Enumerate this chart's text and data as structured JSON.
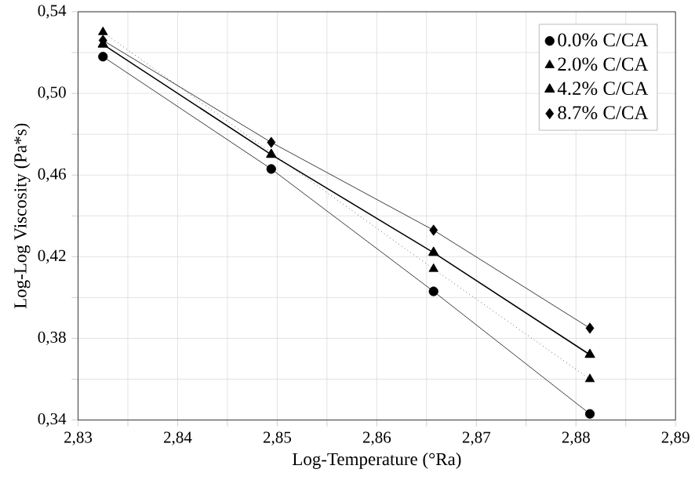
{
  "chart_data": {
    "type": "line",
    "xlabel": "Log-Temperature (°Ra)",
    "ylabel": "Log-Log Viscosity (Pa*s)",
    "xlim": [
      2.83,
      2.89
    ],
    "ylim": [
      0.34,
      0.54
    ],
    "xticks": [
      {
        "value": 2.83,
        "label": "2,83"
      },
      {
        "value": 2.835,
        "label": null
      },
      {
        "value": 2.84,
        "label": "2,84"
      },
      {
        "value": 2.845,
        "label": null
      },
      {
        "value": 2.85,
        "label": "2,85"
      },
      {
        "value": 2.855,
        "label": null
      },
      {
        "value": 2.86,
        "label": "2,86"
      },
      {
        "value": 2.865,
        "label": null
      },
      {
        "value": 2.87,
        "label": "2,87"
      },
      {
        "value": 2.875,
        "label": null
      },
      {
        "value": 2.88,
        "label": "2,88"
      },
      {
        "value": 2.885,
        "label": null
      },
      {
        "value": 2.89,
        "label": "2,89"
      }
    ],
    "yticks": [
      {
        "value": 0.34,
        "label": "0,34"
      },
      {
        "value": 0.36,
        "label": null
      },
      {
        "value": 0.38,
        "label": "0,38"
      },
      {
        "value": 0.4,
        "label": null
      },
      {
        "value": 0.42,
        "label": "0,42"
      },
      {
        "value": 0.44,
        "label": null
      },
      {
        "value": 0.46,
        "label": "0,46"
      },
      {
        "value": 0.48,
        "label": null
      },
      {
        "value": 0.5,
        "label": "0,50"
      },
      {
        "value": 0.52,
        "label": null
      },
      {
        "value": 0.54,
        "label": "0,54"
      }
    ],
    "grid": true,
    "legend": "top right",
    "x": [
      2.8325,
      2.8494,
      2.8657,
      2.8814
    ],
    "series": [
      {
        "name": "0.0% C/CA",
        "color": "#000000",
        "marker": "circle",
        "line_style": "solid",
        "values": [
          0.518,
          0.463,
          0.403,
          0.343
        ]
      },
      {
        "name": "2.0% C/CA",
        "color": "#000000",
        "marker": "triangle",
        "line_style": "dotted",
        "values": [
          0.53,
          null,
          0.414,
          0.36
        ]
      },
      {
        "name": "4.2% C/CA",
        "color": "#000000",
        "marker": "triangle",
        "line_style": "solid",
        "values": [
          0.524,
          0.47,
          0.422,
          0.372
        ]
      },
      {
        "name": "8.7% C/CA",
        "color": "#000000",
        "marker": "diamond",
        "line_style": "solid",
        "values": [
          0.526,
          0.476,
          0.433,
          0.385
        ]
      }
    ]
  }
}
